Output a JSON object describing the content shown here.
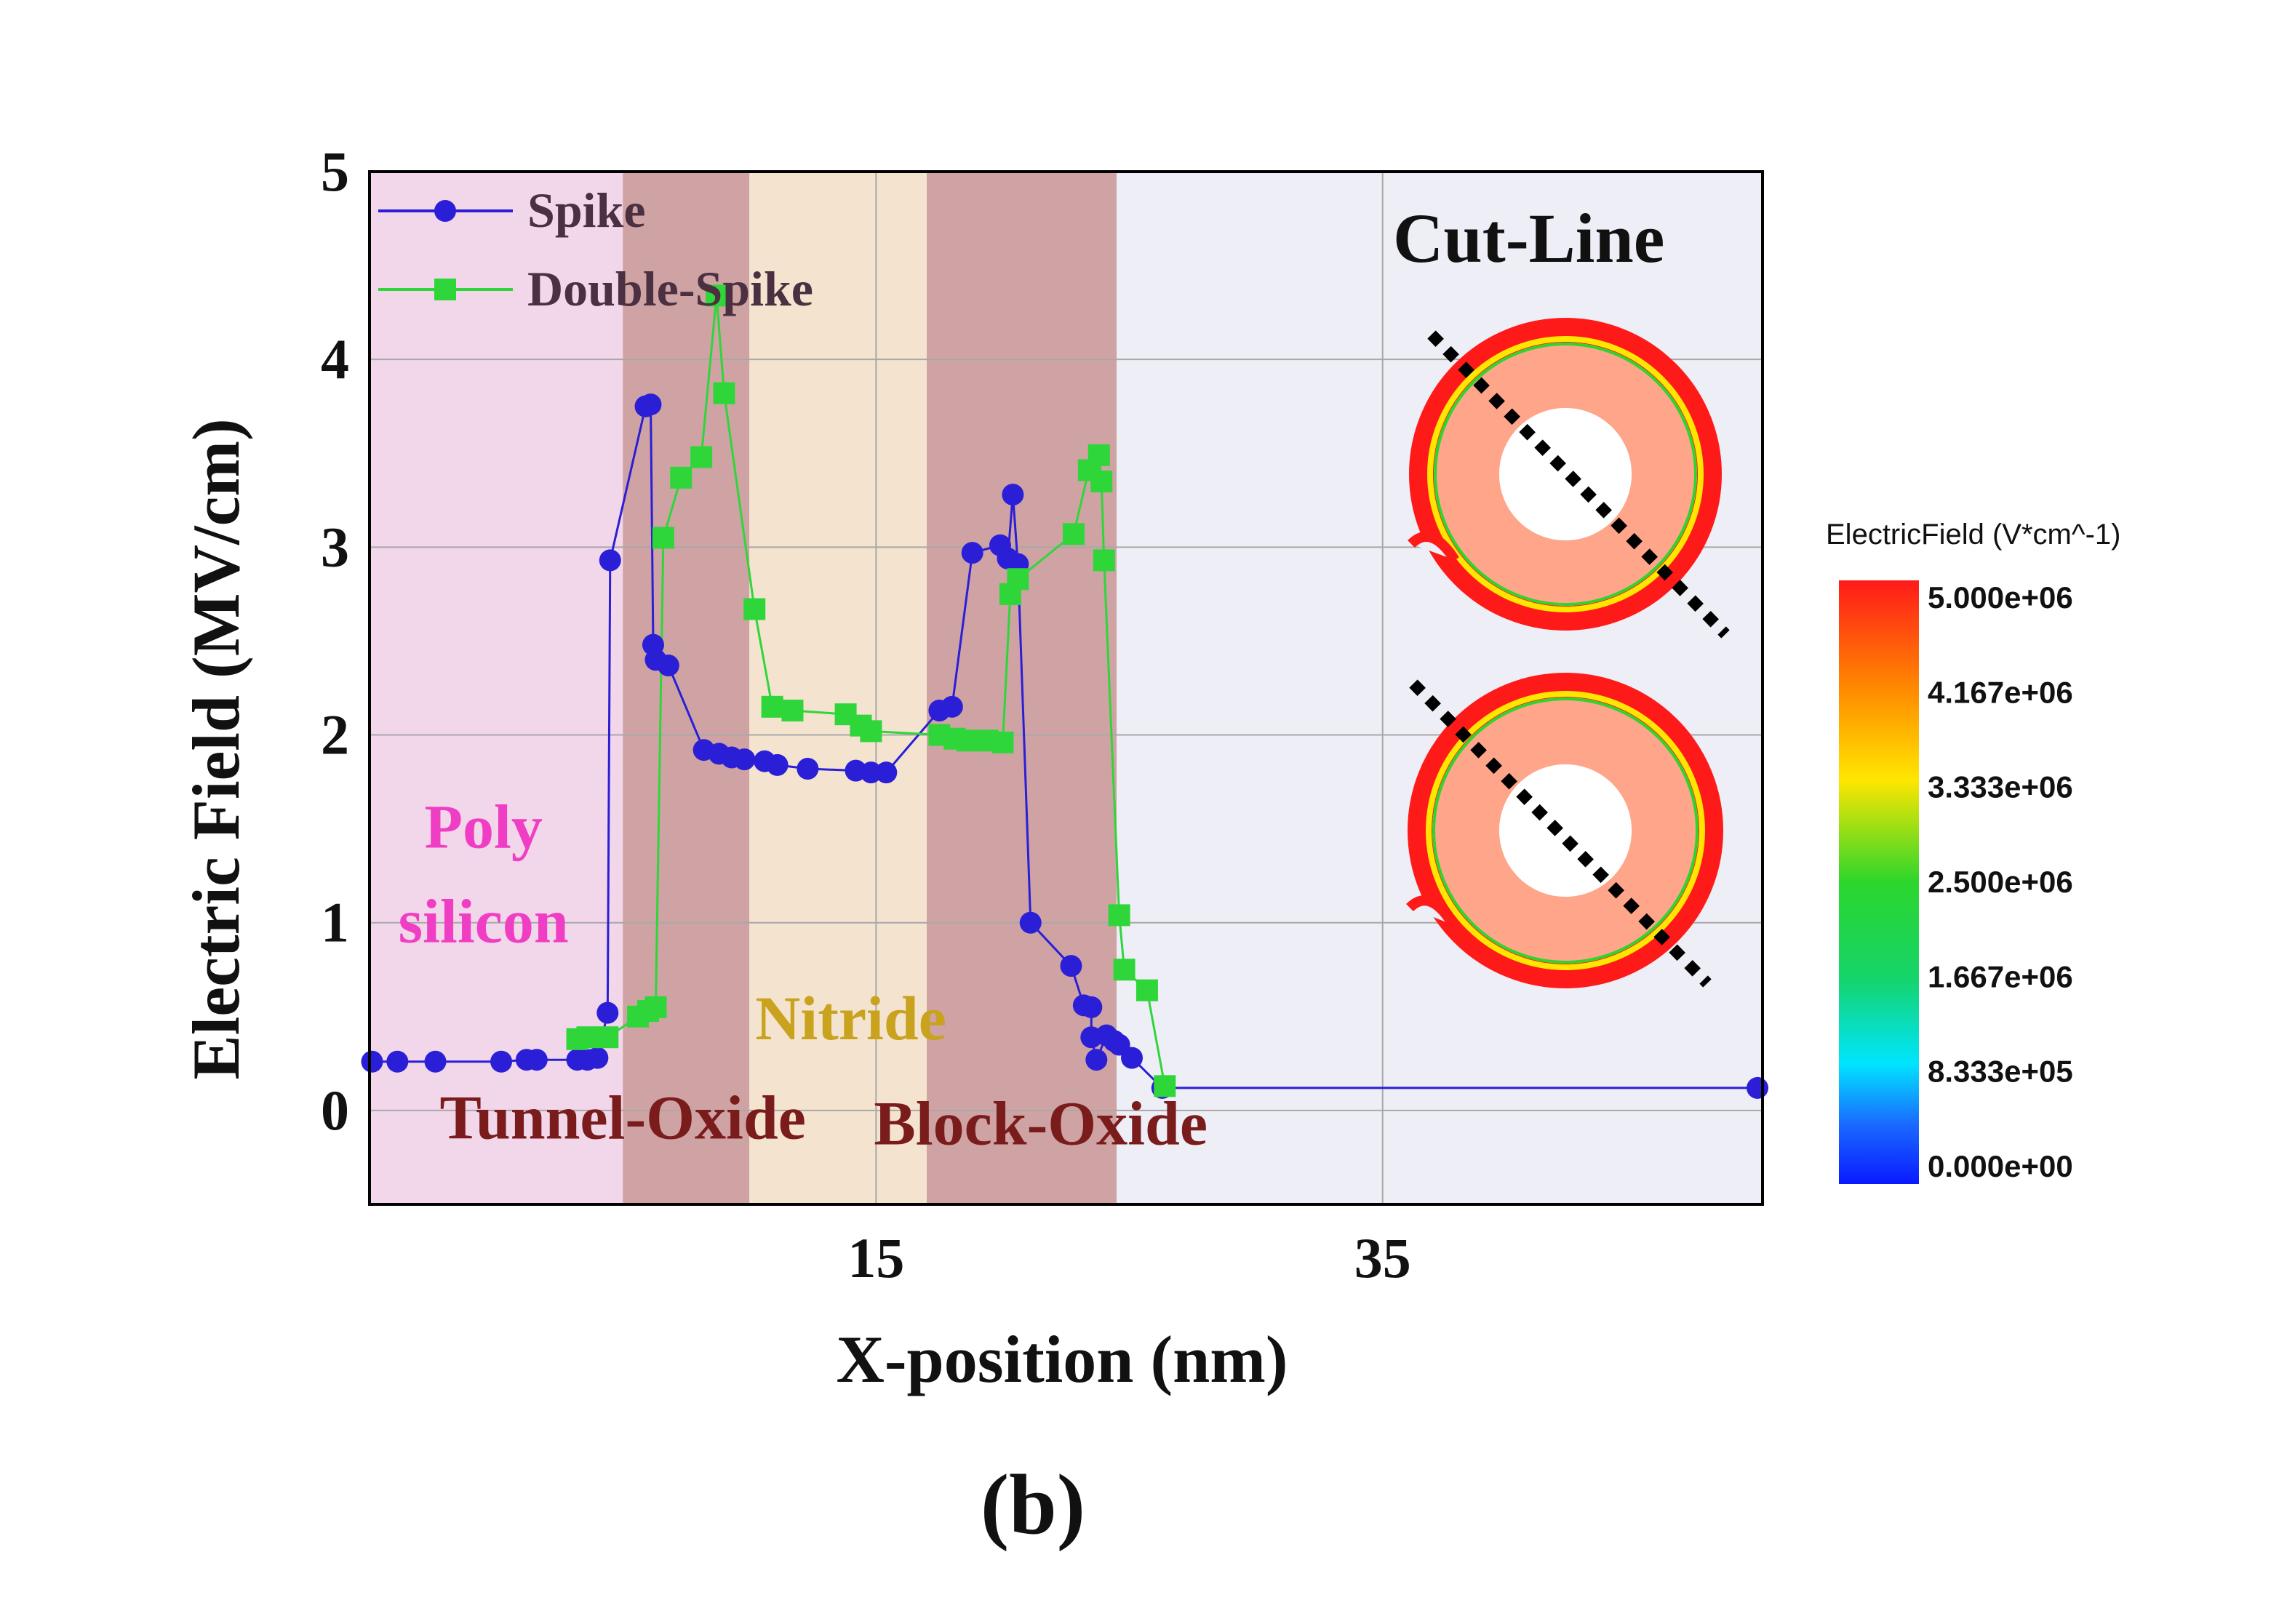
{
  "chart_data": {
    "type": "line",
    "xlabel": "X-position (nm)",
    "ylabel": "Electric Field (MV/cm)",
    "xlim": [
      -5,
      50
    ],
    "ylim": [
      -0.5,
      5
    ],
    "x_ticks": [
      15,
      35
    ],
    "y_ticks": [
      0,
      1,
      2,
      3,
      4,
      5
    ],
    "grid": true,
    "legend_position": "top-left",
    "subfigure_label": "(b)",
    "regions": [
      {
        "name": "Poly\nsilicon",
        "label_lines": [
          "Poly",
          "silicon"
        ],
        "x0": -5,
        "x1": 5,
        "color": "#f2d6ea",
        "label_color": "#f03ec4"
      },
      {
        "name": "Tunnel-Oxide",
        "x0": 5,
        "x1": 10,
        "color": "#cfa3a3",
        "label_color": "#7a1c1c"
      },
      {
        "name": "Nitride",
        "x0": 10,
        "x1": 17,
        "color": "#f4e3cf",
        "label_color": "#c9a21e"
      },
      {
        "name": "Block-Oxide",
        "x0": 17,
        "x1": 24.5,
        "color": "#cfa3a3",
        "label_color": "#7a1c1c"
      },
      {
        "name": "",
        "x0": 24.5,
        "x1": 50,
        "color": "#eeeef6",
        "label_color": ""
      }
    ],
    "series": [
      {
        "name": "Spike",
        "color": "#2a1fd6",
        "marker": "circle",
        "points": [
          [
            -4.9,
            0.26
          ],
          [
            -3.9,
            0.26
          ],
          [
            -2.4,
            0.26
          ],
          [
            0.2,
            0.26
          ],
          [
            1.2,
            0.27
          ],
          [
            1.6,
            0.27
          ],
          [
            3.2,
            0.27
          ],
          [
            3.6,
            0.27
          ],
          [
            4.0,
            0.28
          ],
          [
            4.4,
            0.52
          ],
          [
            4.5,
            2.93
          ],
          [
            5.9,
            3.75
          ],
          [
            6.1,
            3.76
          ],
          [
            6.2,
            2.48
          ],
          [
            6.3,
            2.4
          ],
          [
            6.8,
            2.37
          ],
          [
            8.2,
            1.92
          ],
          [
            8.8,
            1.9
          ],
          [
            9.3,
            1.88
          ],
          [
            9.8,
            1.87
          ],
          [
            10.6,
            1.86
          ],
          [
            11.1,
            1.84
          ],
          [
            12.3,
            1.82
          ],
          [
            14.2,
            1.81
          ],
          [
            14.8,
            1.8
          ],
          [
            15.4,
            1.8
          ],
          [
            17.5,
            2.13
          ],
          [
            18.0,
            2.15
          ],
          [
            18.8,
            2.97
          ],
          [
            19.9,
            3.01
          ],
          [
            20.2,
            2.94
          ],
          [
            20.4,
            3.28
          ],
          [
            20.6,
            2.91
          ],
          [
            21.1,
            1.0
          ],
          [
            22.7,
            0.77
          ],
          [
            23.2,
            0.56
          ],
          [
            23.5,
            0.55
          ],
          [
            23.5,
            0.39
          ],
          [
            23.7,
            0.27
          ],
          [
            24.1,
            0.4
          ],
          [
            24.4,
            0.37
          ],
          [
            24.6,
            0.35
          ],
          [
            25.1,
            0.28
          ],
          [
            26.3,
            0.12
          ],
          [
            49.8,
            0.12
          ]
        ]
      },
      {
        "name": "Double-Spike",
        "color": "#2fd63a",
        "marker": "square",
        "points": [
          [
            3.2,
            0.38
          ],
          [
            3.6,
            0.39
          ],
          [
            4.4,
            0.39
          ],
          [
            5.6,
            0.5
          ],
          [
            6.0,
            0.53
          ],
          [
            6.3,
            0.55
          ],
          [
            6.6,
            3.05
          ],
          [
            7.3,
            3.37
          ],
          [
            8.1,
            3.48
          ],
          [
            8.7,
            4.34
          ],
          [
            9.0,
            3.82
          ],
          [
            10.2,
            2.67
          ],
          [
            10.9,
            2.15
          ],
          [
            11.7,
            2.13
          ],
          [
            13.8,
            2.11
          ],
          [
            14.4,
            2.05
          ],
          [
            14.8,
            2.02
          ],
          [
            17.5,
            2.0
          ],
          [
            18.1,
            1.98
          ],
          [
            18.6,
            1.97
          ],
          [
            19.4,
            1.97
          ],
          [
            20.0,
            1.96
          ],
          [
            20.3,
            2.75
          ],
          [
            20.6,
            2.83
          ],
          [
            22.8,
            3.07
          ],
          [
            23.4,
            3.41
          ],
          [
            23.8,
            3.49
          ],
          [
            23.9,
            3.35
          ],
          [
            24.0,
            2.93
          ],
          [
            24.6,
            1.04
          ],
          [
            24.8,
            0.75
          ],
          [
            25.7,
            0.64
          ],
          [
            26.4,
            0.13
          ]
        ]
      }
    ],
    "annotations": {
      "cut_line_title": "Cut-Line",
      "colorbar_title": "ElectricField (V*cm^-1)",
      "colorbar_ticks": [
        "5.000e+06",
        "4.167e+06",
        "3.333e+06",
        "2.500e+06",
        "1.667e+06",
        "8.333e+05",
        "0.000e+00"
      ]
    }
  }
}
